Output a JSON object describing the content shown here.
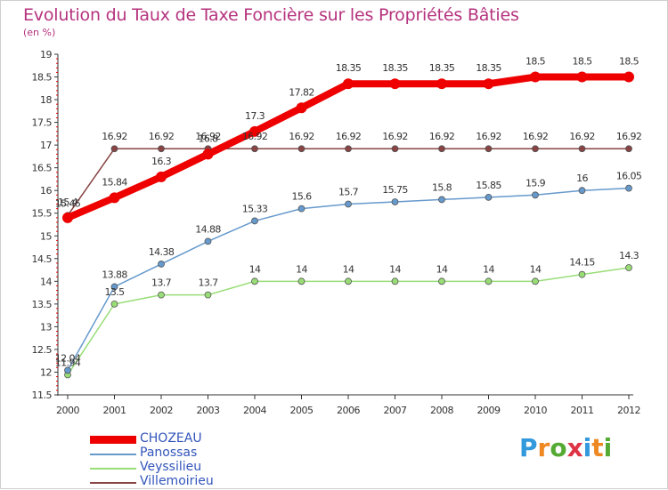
{
  "title": "Evolution du Taux de Taxe Foncière sur les Propriétés Bâties",
  "unit_label": "(en %)",
  "logo_text": "Proxiti",
  "chart_data": {
    "type": "line",
    "title": "Evolution du Taux de Taxe Foncière sur les Propriétés Bâties",
    "ylabel": "(en %)",
    "xlabel": "",
    "ylim": [
      11.5,
      19
    ],
    "yticks": [
      "11.5",
      "12",
      "12.5",
      "13",
      "13.5",
      "14",
      "14.5",
      "15",
      "15.5",
      "16",
      "16.5",
      "17",
      "17.5",
      "18",
      "18.5",
      "19"
    ],
    "categories": [
      "2000",
      "2001",
      "2002",
      "2003",
      "2004",
      "2005",
      "2006",
      "2007",
      "2008",
      "2009",
      "2010",
      "2011",
      "2012"
    ],
    "series": [
      {
        "name": "CHOZEAU",
        "color": "#ee0000",
        "values": [
          15.4,
          15.84,
          16.3,
          16.8,
          17.3,
          17.82,
          18.35,
          18.35,
          18.35,
          18.35,
          18.5,
          18.5,
          18.5
        ],
        "labels": [
          "15.4",
          "15.84",
          "16.3",
          "16.8",
          "17.3",
          "17.82",
          "18.35",
          "18.35",
          "18.35",
          "18.35",
          "18.5",
          "18.5",
          "18.5"
        ]
      },
      {
        "name": "Panossas",
        "color": "#6699cc",
        "values": [
          12.04,
          13.88,
          14.38,
          14.88,
          15.33,
          15.6,
          15.7,
          15.75,
          15.8,
          15.85,
          15.9,
          16,
          16.05
        ],
        "labels": [
          "12.04",
          "13.88",
          "14.38",
          "14.88",
          "15.33",
          "15.6",
          "15.7",
          "15.75",
          "15.8",
          "15.85",
          "15.9",
          "16",
          "16.05"
        ]
      },
      {
        "name": "Veyssilieu",
        "color": "#99dd77",
        "values": [
          11.94,
          13.5,
          13.7,
          13.7,
          14,
          14,
          14,
          14,
          14,
          14,
          14,
          14.15,
          14.3
        ],
        "labels": [
          "11.94",
          "13.5",
          "13.7",
          "13.7",
          "14",
          "14",
          "14",
          "14",
          "14",
          "14",
          "14",
          "14.15",
          "14.3"
        ]
      },
      {
        "name": "Villemoirieu",
        "color": "#884444",
        "values": [
          15.45,
          16.92,
          16.92,
          16.92,
          16.92,
          16.92,
          16.92,
          16.92,
          16.92,
          16.92,
          16.92,
          16.92,
          16.92
        ],
        "labels": [
          "15.45",
          "16.92",
          "16.92",
          "16.92",
          "16.92",
          "16.92",
          "16.92",
          "16.92",
          "16.92",
          "16.92",
          "16.92",
          "16.92",
          "16.92"
        ]
      }
    ]
  },
  "colors": {
    "title": "#b5337e",
    "axis": "#333333",
    "tick_red": "#ee0000",
    "legend_text": "#3355bb",
    "logo": [
      "#3399dd",
      "#ee8822",
      "#55aa33",
      "#dd3344",
      "#3399dd",
      "#ee8822",
      "#55aa33"
    ]
  }
}
